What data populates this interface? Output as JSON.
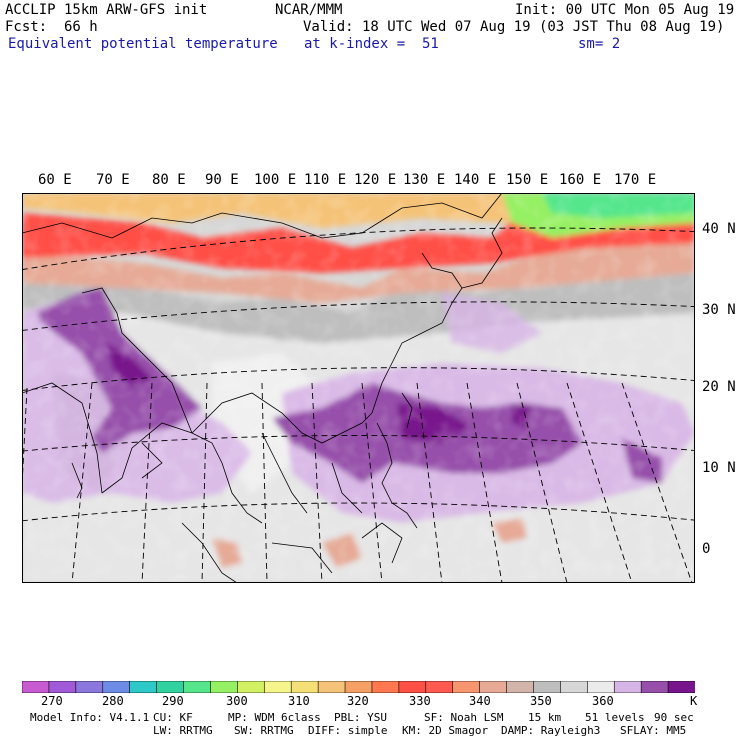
{
  "header": {
    "model": "ACCLIP 15km ARW-GFS init",
    "center": "NCAR/MMM",
    "init": "Init: 00 UTC Mon 05 Aug 19",
    "fcst_label": "Fcst:",
    "fcst_value": "66 h",
    "valid": "Valid: 18 UTC Wed 07 Aug 19 (03 JST Thu 08 Aug 19)",
    "field": "Equivalent potential temperature",
    "level": "at k-index =  51",
    "smooth": "sm= 2"
  },
  "map": {
    "longitude_labels": [
      "60 E",
      "70 E",
      "80 E",
      "90 E",
      "100 E",
      "110 E",
      "120 E",
      "130 E",
      "140 E",
      "150 E",
      "160 E",
      "170 E"
    ],
    "latitude_labels": [
      "40 N",
      "30 N",
      "20 N",
      "10 N",
      "0"
    ]
  },
  "colorbar": {
    "colors": [
      "#c85ad2",
      "#a05ad7",
      "#8c78dc",
      "#6e8ce6",
      "#2dc8c8",
      "#32d2a0",
      "#55e68c",
      "#96f064",
      "#d2f064",
      "#f5f58c",
      "#f5e078",
      "#f5c378",
      "#f5a064",
      "#ff7850",
      "#ff5046",
      "#ff5a50",
      "#f5966e",
      "#e6aa96",
      "#d2b4aa",
      "#bebebe",
      "#d7d7d7",
      "#ebebeb",
      "#d7b4e6",
      "#9650aa",
      "#78148c"
    ],
    "tick_labels": [
      "270",
      "280",
      "290",
      "300",
      "310",
      "320",
      "330",
      "340",
      "350",
      "360"
    ],
    "unit": "K"
  },
  "footer": {
    "line1": [
      "Model Info: V4.1.1",
      "CU: KF",
      "MP: WDM 6class",
      "PBL: YSU",
      "SF: Noah LSM",
      "15 km",
      "51 levels",
      "90 sec"
    ],
    "line2": [
      "LW: RRTMG",
      "SW: RRTMG",
      "DIFF: simple",
      "KM: 2D Smagor",
      "DAMP: Rayleigh3",
      "SFLAY: MM5"
    ]
  }
}
